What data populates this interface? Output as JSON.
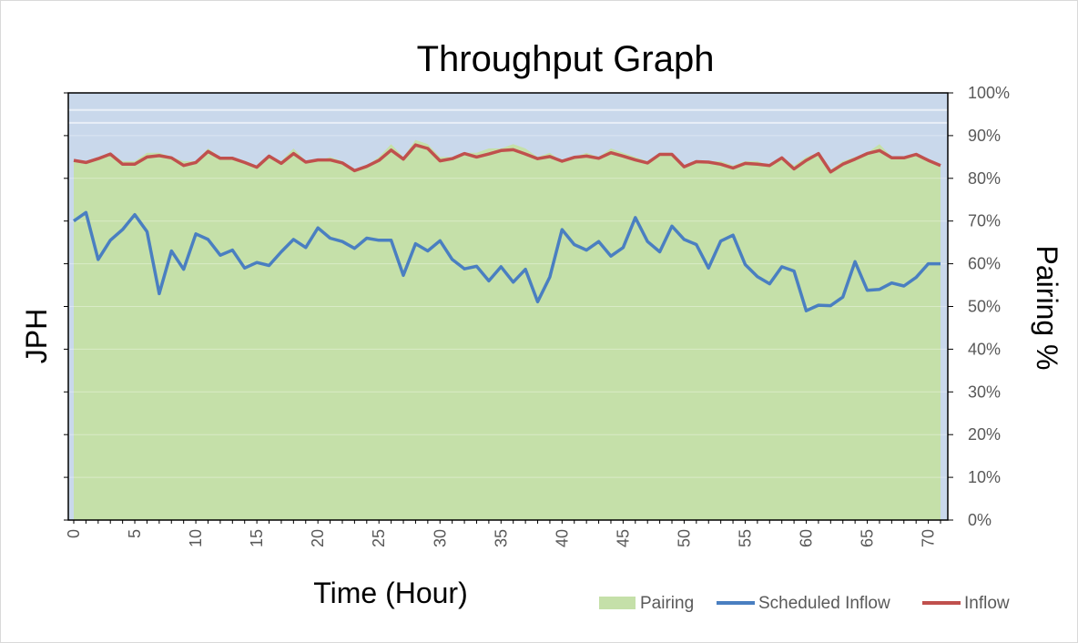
{
  "chart_data": {
    "type": "line",
    "title": "Throughput Graph",
    "xlabel": "Time (Hour)",
    "ylabel": "JPH",
    "y2label": "Pairing %",
    "xlim": [
      0,
      71
    ],
    "ylim2": [
      0,
      1
    ],
    "x_ticks": [
      "0",
      "5",
      "10",
      "15",
      "20",
      "25",
      "30",
      "35",
      "40",
      "45",
      "50",
      "55",
      "60",
      "65",
      "70"
    ],
    "y2_ticks": [
      "0%",
      "10%",
      "20%",
      "30%",
      "40%",
      "50%",
      "60%",
      "70%",
      "80%",
      "90%",
      "100%"
    ],
    "legend_position": "bottom-right",
    "legend": [
      "Pairing",
      "Scheduled Inflow",
      "Inflow"
    ],
    "colors": {
      "pairing": "#c5e0a9",
      "scheduled_inflow": "#4a7fc1",
      "inflow": "#c0504d",
      "plot_background": "#c9d8eb"
    },
    "series": [
      {
        "name": "Pairing",
        "kind": "area",
        "axis": "right",
        "values": [
          0.84,
          0.84,
          0.85,
          0.86,
          0.84,
          0.84,
          0.86,
          0.86,
          0.85,
          0.84,
          0.84,
          0.87,
          0.85,
          0.85,
          0.84,
          0.83,
          0.85,
          0.84,
          0.87,
          0.84,
          0.84,
          0.85,
          0.84,
          0.82,
          0.83,
          0.85,
          0.88,
          0.85,
          0.89,
          0.88,
          0.85,
          0.85,
          0.86,
          0.86,
          0.87,
          0.87,
          0.88,
          0.87,
          0.85,
          0.86,
          0.84,
          0.85,
          0.86,
          0.85,
          0.87,
          0.86,
          0.85,
          0.84,
          0.86,
          0.86,
          0.83,
          0.84,
          0.84,
          0.84,
          0.83,
          0.84,
          0.84,
          0.83,
          0.85,
          0.83,
          0.85,
          0.86,
          0.82,
          0.84,
          0.85,
          0.86,
          0.88,
          0.85,
          0.85,
          0.86,
          0.84,
          0.83
        ]
      },
      {
        "name": "Scheduled Inflow",
        "kind": "line",
        "axis": "right",
        "values": [
          0.7,
          0.72,
          0.61,
          0.655,
          0.68,
          0.715,
          0.675,
          0.53,
          0.63,
          0.587,
          0.67,
          0.657,
          0.62,
          0.632,
          0.59,
          0.603,
          0.596,
          0.628,
          0.657,
          0.638,
          0.684,
          0.66,
          0.652,
          0.636,
          0.66,
          0.655,
          0.655,
          0.573,
          0.647,
          0.63,
          0.654,
          0.61,
          0.588,
          0.594,
          0.56,
          0.593,
          0.557,
          0.587,
          0.511,
          0.569,
          0.68,
          0.645,
          0.632,
          0.652,
          0.618,
          0.638,
          0.708,
          0.652,
          0.628,
          0.688,
          0.657,
          0.645,
          0.59,
          0.653,
          0.667,
          0.598,
          0.57,
          0.553,
          0.593,
          0.583,
          0.49,
          0.503,
          0.502,
          0.522,
          0.605,
          0.538,
          0.54,
          0.555,
          0.548,
          0.568,
          0.6,
          0.6
        ]
      },
      {
        "name": "Inflow",
        "kind": "line",
        "axis": "right",
        "values": [
          0.842,
          0.837,
          0.846,
          0.857,
          0.833,
          0.833,
          0.85,
          0.853,
          0.848,
          0.83,
          0.837,
          0.863,
          0.847,
          0.847,
          0.837,
          0.826,
          0.852,
          0.835,
          0.858,
          0.838,
          0.843,
          0.843,
          0.836,
          0.818,
          0.828,
          0.842,
          0.866,
          0.845,
          0.878,
          0.87,
          0.841,
          0.846,
          0.858,
          0.85,
          0.857,
          0.865,
          0.867,
          0.857,
          0.846,
          0.851,
          0.84,
          0.849,
          0.852,
          0.847,
          0.86,
          0.852,
          0.843,
          0.836,
          0.856,
          0.856,
          0.827,
          0.839,
          0.838,
          0.833,
          0.824,
          0.835,
          0.833,
          0.83,
          0.848,
          0.822,
          0.842,
          0.858,
          0.815,
          0.833,
          0.845,
          0.858,
          0.865,
          0.848,
          0.848,
          0.856,
          0.842,
          0.83
        ]
      }
    ]
  }
}
